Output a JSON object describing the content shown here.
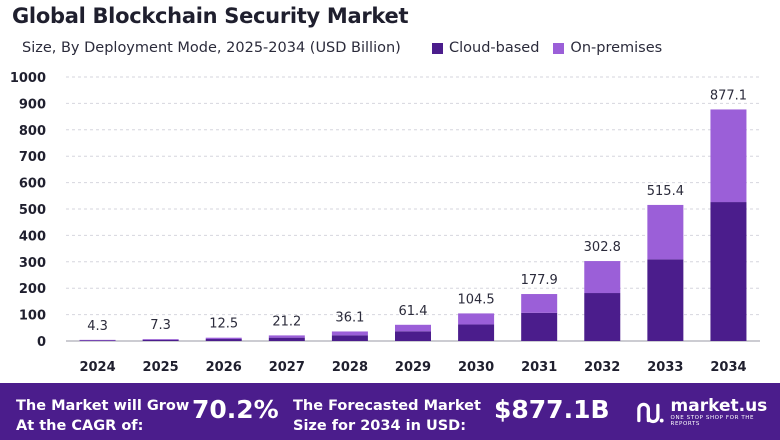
{
  "chart_data": {
    "type": "bar",
    "stacked": true,
    "title": "Global Blockchain Security Market",
    "subtitle": "Size, By Deployment Mode, 2025-2034 (USD Billion)",
    "categories": [
      "2024",
      "2025",
      "2026",
      "2027",
      "2028",
      "2029",
      "2030",
      "2031",
      "2032",
      "2033",
      "2034"
    ],
    "series": [
      {
        "name": "Cloud-based",
        "color": "#4b1d8c",
        "values": [
          2.6,
          4.4,
          7.5,
          12.7,
          21.7,
          36.8,
          62.7,
          106.7,
          181.7,
          309.2,
          526.3
        ]
      },
      {
        "name": "On-premises",
        "color": "#9b5fd8",
        "values": [
          1.7,
          2.9,
          5.0,
          8.5,
          14.4,
          24.6,
          41.8,
          71.2,
          121.1,
          206.2,
          350.8
        ]
      }
    ],
    "totals": [
      "4.3",
      "7.3",
      "12.5",
      "21.2",
      "36.1",
      "61.4",
      "104.5",
      "177.9",
      "302.8",
      "515.4",
      "877.1"
    ],
    "ylim": [
      0,
      1000
    ],
    "yticks": [
      0,
      100,
      200,
      300,
      400,
      500,
      600,
      700,
      800,
      900,
      1000
    ],
    "grid": true,
    "legend_position": "top-right"
  },
  "footer": {
    "cagr_label_1": "The Market will Grow",
    "cagr_label_2": "At the CAGR of:",
    "cagr_value": "70.2%",
    "forecast_label_1": "The Forecasted Market",
    "forecast_label_2": "Size for 2034 in USD:",
    "forecast_value": "$877.1B",
    "brand": "market.us",
    "tagline": "ONE STOP SHOP FOR THE REPORTS"
  }
}
